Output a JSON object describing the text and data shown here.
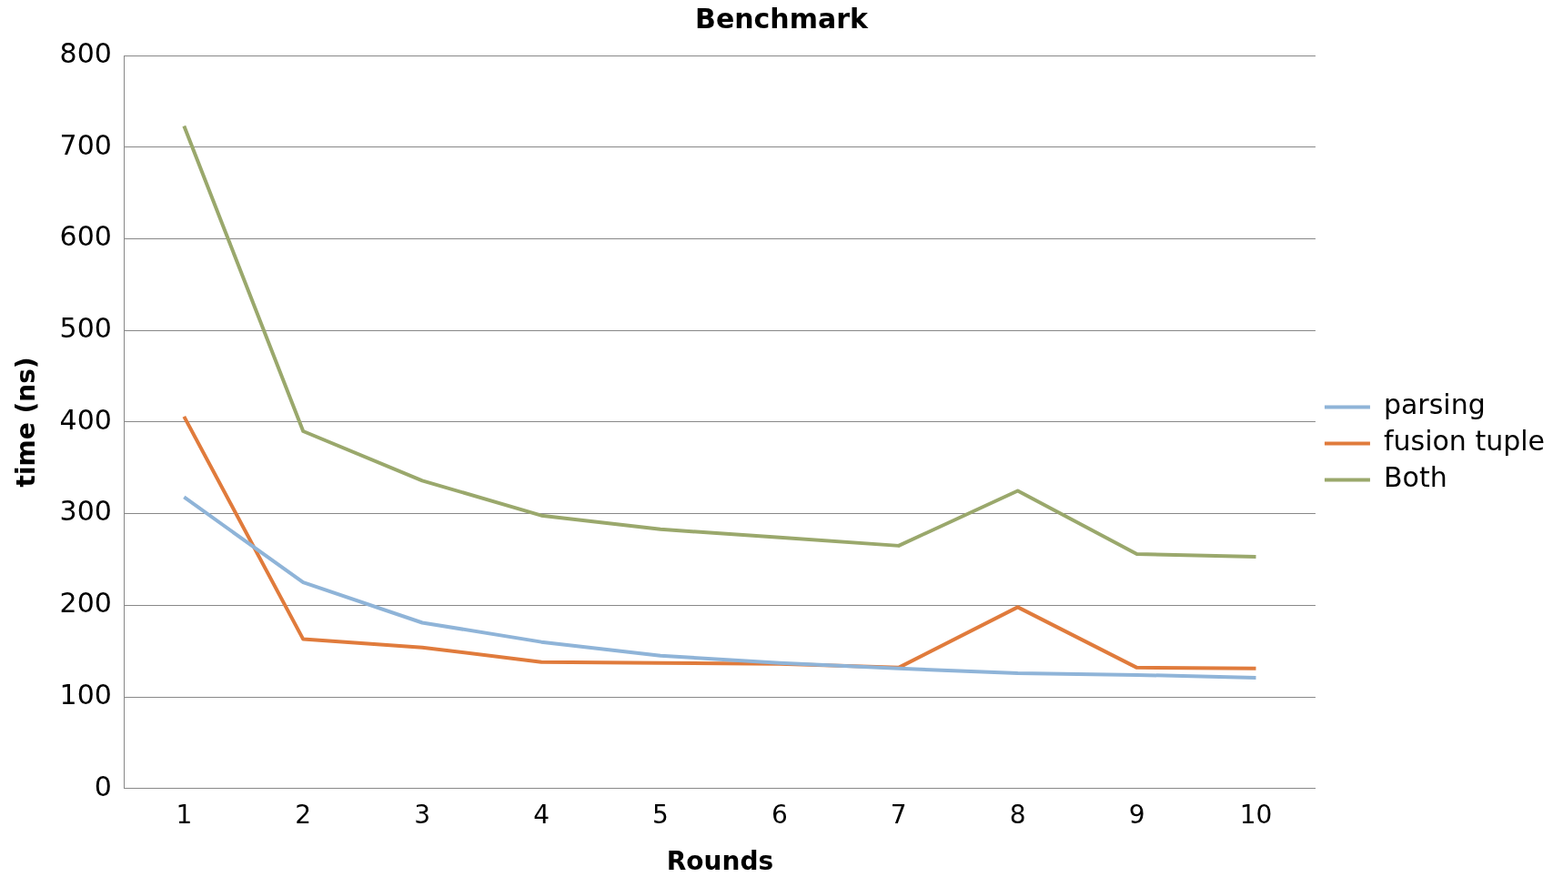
{
  "chart_data": {
    "type": "line",
    "title": "Benchmark",
    "xlabel": "Rounds",
    "ylabel": "time (ns)",
    "categories": [
      "1",
      "2",
      "3",
      "4",
      "5",
      "6",
      "7",
      "8",
      "9",
      "10"
    ],
    "series": [
      {
        "name": "parsing",
        "color": "#8fb4d8",
        "values": [
          318,
          225,
          181,
          160,
          145,
          137,
          131,
          126,
          124,
          121
        ]
      },
      {
        "name": "fusion tuple",
        "color": "#e07b3c",
        "values": [
          406,
          163,
          154,
          138,
          137,
          136,
          132,
          198,
          132,
          131
        ]
      },
      {
        "name": "Both",
        "color": "#9aa86c",
        "values": [
          723,
          390,
          336,
          298,
          283,
          274,
          265,
          325,
          256,
          253
        ]
      }
    ],
    "ylim": [
      0,
      800
    ],
    "yticks": [
      0,
      100,
      200,
      300,
      400,
      500,
      600,
      700,
      800
    ],
    "grid": "y",
    "legend": "right",
    "marker": "none",
    "line_style": "solid"
  }
}
